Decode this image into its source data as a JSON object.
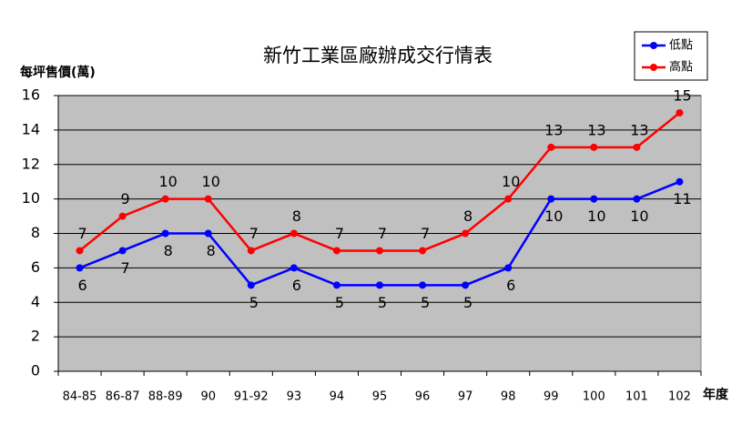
{
  "chart_data": {
    "type": "line",
    "title": "新竹工業區廠辦成交行情表",
    "y_label": "每坪售價(萬)",
    "x_label": "年度",
    "categories": [
      "84-85",
      "86-87",
      "88-89",
      "90",
      "91-92",
      "93",
      "94",
      "95",
      "96",
      "97",
      "98",
      "99",
      "100",
      "101",
      "102"
    ],
    "series": [
      {
        "name": "低點",
        "color": "#0000ff",
        "values": [
          6,
          7,
          8,
          8,
          5,
          6,
          5,
          5,
          5,
          5,
          6,
          10,
          10,
          10,
          11
        ],
        "label_side": "below"
      },
      {
        "name": "高點",
        "color": "#ff0000",
        "values": [
          7,
          9,
          10,
          10,
          7,
          8,
          7,
          7,
          7,
          8,
          10,
          13,
          13,
          13,
          15
        ],
        "label_side": "above"
      }
    ],
    "ylim": [
      0,
      16
    ],
    "yticks": [
      0,
      2,
      4,
      6,
      8,
      10,
      12,
      14,
      16
    ],
    "grid": true,
    "legend": "top-right",
    "plot_background": "#c0c0c0"
  }
}
